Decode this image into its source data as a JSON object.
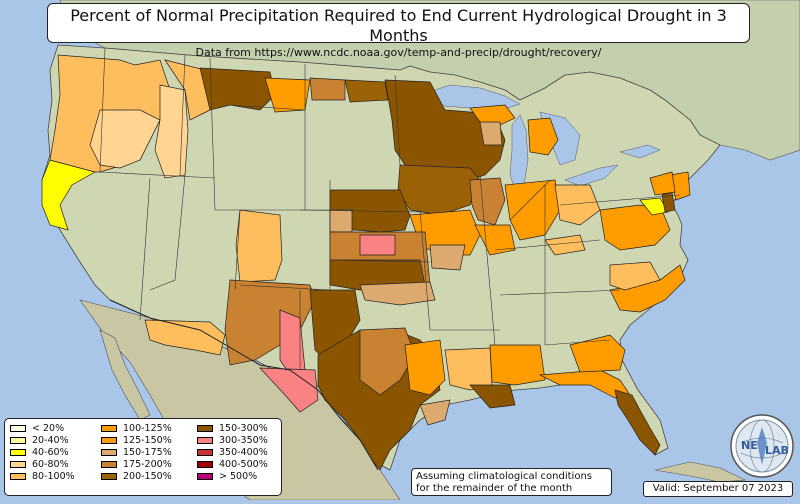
{
  "title": "Percent of Normal Precipitation Required to End Current Hydrological Drought in 3 Months",
  "subtitle": "Data from https://www.ncdc.noaa.gov/temp-and-precip/drought/recovery/",
  "colors": {
    "ocean": "#a9c6e8",
    "land": "#c9d2a8",
    "lt20": "#fffde0",
    "p20_40": "#fdfc99",
    "p40_60": "#ffff00",
    "p60_80": "#ffd591",
    "p80_100": "#ffbe5e",
    "p100_125": "#ff9d00",
    "p125_150": "#f59b14",
    "p150_175": "#dcaa6e",
    "p175_200": "#c88232",
    "p200_150": "#9b6205",
    "p150_300": "#8b5500",
    "p300_350": "#fa8282",
    "p350_400": "#c83232",
    "p400_500": "#a00000",
    "gt500": "#b40078"
  },
  "legend": [
    [
      {
        "label": "< 20%",
        "color": "#fffde0"
      },
      {
        "label": "20-40%",
        "color": "#fdfc99"
      },
      {
        "label": "40-60%",
        "color": "#ffff00"
      },
      {
        "label": "60-80%",
        "color": "#ffd591"
      },
      {
        "label": "80-100%",
        "color": "#ffbe5e"
      }
    ],
    [
      {
        "label": "100-125%",
        "color": "#ff9d00"
      },
      {
        "label": "125-150%",
        "color": "#f59b14"
      },
      {
        "label": "150-175%",
        "color": "#dcaa6e"
      },
      {
        "label": "175-200%",
        "color": "#c88232"
      },
      {
        "label": "200-150%",
        "color": "#9b6205"
      }
    ],
    [
      {
        "label": "150-300%",
        "color": "#8b5500"
      },
      {
        "label": "300-350%",
        "color": "#fa8282"
      },
      {
        "label": "350-400%",
        "color": "#c83232"
      },
      {
        "label": "400-500%",
        "color": "#a00000"
      },
      {
        "label": "> 500%",
        "color": "#b40078"
      }
    ]
  ],
  "note_line1": "Assuming climatological conditions",
  "note_line2": "for the remainder of the month",
  "valid": "Valid: September 07 2023",
  "logo": {
    "left": "NE",
    "right": "LAB",
    "icon": "nevlab-logo-icon"
  }
}
